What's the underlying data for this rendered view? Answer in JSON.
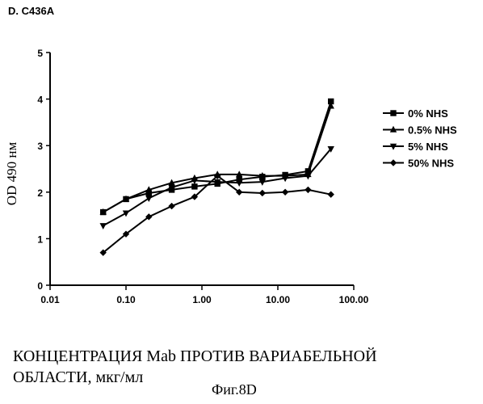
{
  "chart_data": {
    "type": "line",
    "title": "D. C436A",
    "xlabel_line1": "КОНЦЕНТРАЦИЯ Mab ПРОТИВ ВАРИАБЕЛЬНОЙ",
    "xlabel_line2": "ОБЛАСТИ, мкг/мл",
    "ylabel": "OD 490 нм",
    "caption": "Фиг.8D",
    "xscale": "log",
    "xlim": [
      0.01,
      100
    ],
    "ylim": [
      0,
      5
    ],
    "xticks": [
      "0.01",
      "0.10",
      "1.00",
      "10.00",
      "100.00"
    ],
    "yticks": [
      "0",
      "1",
      "2",
      "3",
      "4",
      "5"
    ],
    "grid": false,
    "legend_position": "right",
    "series": [
      {
        "name": "0% NHS",
        "marker": "square",
        "x": [
          0.05,
          0.1,
          0.2,
          0.4,
          0.8,
          1.6,
          3.1,
          6.25,
          12.5,
          25,
          50
        ],
        "y": [
          1.57,
          1.85,
          1.98,
          2.05,
          2.12,
          2.18,
          2.27,
          2.33,
          2.37,
          2.45,
          3.95
        ]
      },
      {
        "name": "0.5% NHS",
        "marker": "triangle-up",
        "x": [
          0.05,
          0.1,
          0.2,
          0.4,
          0.8,
          1.6,
          3.1,
          6.25,
          12.5,
          25,
          50
        ],
        "y": [
          1.57,
          1.85,
          2.05,
          2.2,
          2.3,
          2.38,
          2.38,
          2.35,
          2.35,
          2.38,
          3.85
        ]
      },
      {
        "name": "5% NHS",
        "marker": "triangle-down",
        "x": [
          0.05,
          0.1,
          0.2,
          0.4,
          0.8,
          1.6,
          3.1,
          6.25,
          12.5,
          25,
          50
        ],
        "y": [
          1.28,
          1.55,
          1.87,
          2.1,
          2.25,
          2.22,
          2.2,
          2.22,
          2.3,
          2.35,
          2.93
        ]
      },
      {
        "name": "50% NHS",
        "marker": "diamond",
        "x": [
          0.05,
          0.1,
          0.2,
          0.4,
          0.8,
          1.6,
          3.1,
          6.25,
          12.5,
          25,
          50
        ],
        "y": [
          0.7,
          1.1,
          1.47,
          1.7,
          1.9,
          2.35,
          2.0,
          1.98,
          2.0,
          2.05,
          1.95
        ]
      }
    ]
  }
}
